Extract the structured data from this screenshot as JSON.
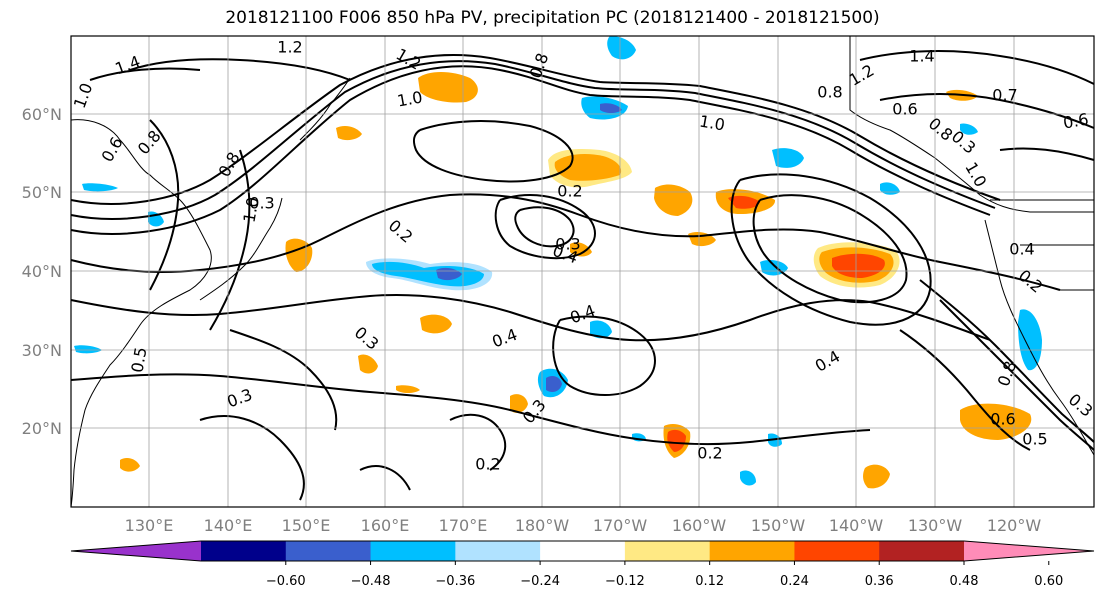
{
  "title": "2018121100 F006 850 hPa PV, precipitation PC (2018121400 - 2018121500)",
  "lat_labels": [
    "60°N",
    "50°N",
    "40°N",
    "30°N",
    "20°N"
  ],
  "lon_labels": [
    "130°E",
    "140°E",
    "150°E",
    "160°E",
    "170°E",
    "180°W",
    "170°W",
    "160°W",
    "150°W",
    "140°W",
    "130°W",
    "120°W"
  ],
  "colorbar": {
    "tick_labels": [
      "−0.60",
      "−0.48",
      "−0.36",
      "−0.24",
      "−0.12",
      "0.12",
      "0.24",
      "0.36",
      "0.48",
      "0.60"
    ],
    "colors": [
      "#9932cc",
      "#00008b",
      "#3a5fcd",
      "#00bfff",
      "#b0e2ff",
      "#ffffff",
      "#ffe984",
      "#ffa500",
      "#ff4500",
      "#b22222",
      "#ff8cb8"
    ]
  },
  "contour_labels": [
    "1.2",
    "1.4",
    "1.0",
    "0.8",
    "1.2",
    "1.0",
    "0.8",
    "0.8",
    "1.0",
    "0.8",
    "0.6",
    "1.2",
    "1.4",
    "0.7",
    "0.6",
    "0.8",
    "0.6",
    "1.0",
    "0.3",
    "0.2",
    "0.2",
    "0.3",
    "0.4",
    "0.4",
    "0.4",
    "0.3",
    "0.4",
    "0.3",
    "0.3",
    "0.2",
    "0.2",
    "0.2",
    "0.4",
    "0.3",
    "0.5",
    "0.6",
    "0.3",
    "0.8",
    "0.5",
    "1.0"
  ],
  "map_colors": {
    "pos_light": "#ffe984",
    "pos_mid": "#ffa500",
    "pos_strong": "#ff4500",
    "neg_light": "#b0e2ff",
    "neg_mid": "#00bfff",
    "neg_strong": "#3a5fcd",
    "grid": "#a0a0a0",
    "label_gray": "#808080"
  }
}
